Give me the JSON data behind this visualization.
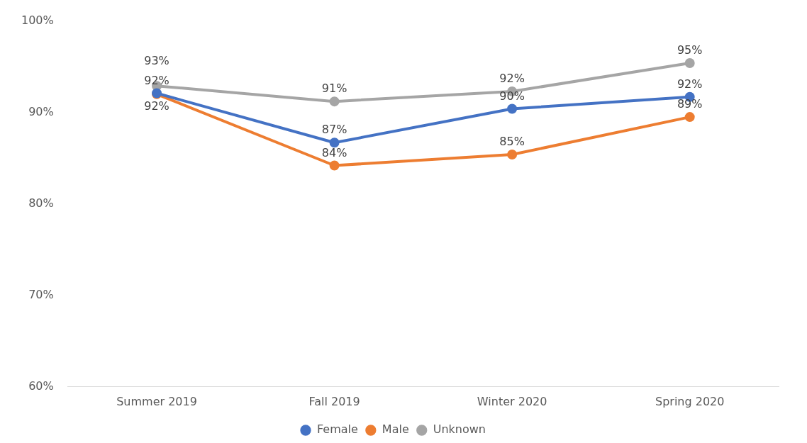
{
  "chart_data": {
    "type": "line",
    "categories": [
      "Summer 2019",
      "Fall 2019",
      "Winter 2020",
      "Spring 2020"
    ],
    "series": [
      {
        "name": "Female",
        "color": "#4472c4",
        "values": [
          92.1,
          86.7,
          90.4,
          91.7
        ],
        "value_labels": [
          "92%",
          "87%",
          "90%",
          "92%"
        ]
      },
      {
        "name": "Male",
        "color": "#ed7d31",
        "values": [
          92.0,
          84.2,
          85.4,
          89.5
        ],
        "value_labels": [
          "92%",
          "84%",
          "85%",
          "89%"
        ]
      },
      {
        "name": "Unknown",
        "color": "#a5a5a5",
        "values": [
          92.9,
          91.2,
          92.3,
          95.4
        ],
        "value_labels": [
          "93%",
          "91%",
          "92%",
          "95%"
        ]
      }
    ],
    "ylim": [
      60,
      100
    ],
    "yticks": [
      {
        "value": 60,
        "label": "60%"
      },
      {
        "value": 70,
        "label": "70%"
      },
      {
        "value": 80,
        "label": "80%"
      },
      {
        "value": 90,
        "label": "90%"
      },
      {
        "value": 100,
        "label": "100%"
      }
    ],
    "grid": false,
    "legend": "bottom",
    "marker": "circle",
    "line_style": "solid"
  }
}
